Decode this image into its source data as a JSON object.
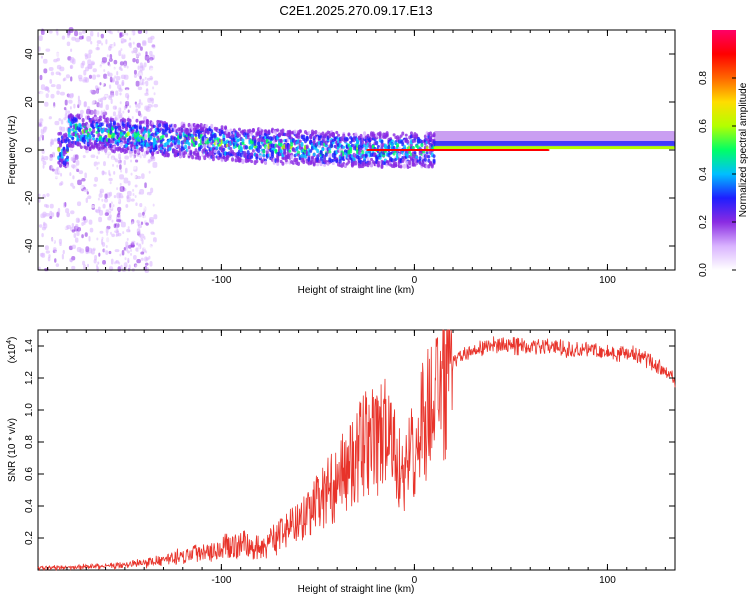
{
  "title": "C2E1.2025.270.09.17.E13",
  "chart_data": [
    {
      "type": "heatmap",
      "title": "C2E1.2025.270.09.17.E13",
      "xlabel": "Height of straight line (km)",
      "ylabel": "Frequency (Hz)",
      "xlim": [
        -195,
        135
      ],
      "ylim": [
        -50,
        50
      ],
      "xticks": [
        -100,
        0,
        100
      ],
      "yticks": [
        -40,
        -20,
        0,
        20,
        40
      ],
      "colorbar": {
        "label": "Normalized spectral amplitude",
        "range": [
          0,
          1
        ],
        "ticks": [
          "0.0",
          "0.2",
          "0.4",
          "0.6",
          "0.8"
        ],
        "colors": [
          "#ffffff",
          "#d9b3ff",
          "#8a2be2",
          "#1e1eff",
          "#00bfff",
          "#00ff66",
          "#b3ff00",
          "#ffdd00",
          "#ff6600",
          "#ff0000",
          "#ff0066"
        ]
      },
      "trend_hz": [
        {
          "x": -180,
          "y": 8
        },
        {
          "x": -150,
          "y": 6
        },
        {
          "x": -120,
          "y": 4
        },
        {
          "x": -90,
          "y": 2
        },
        {
          "x": -60,
          "y": 1
        },
        {
          "x": -30,
          "y": 0
        },
        {
          "x": 0,
          "y": 0
        },
        {
          "x": 130,
          "y": 0
        }
      ]
    },
    {
      "type": "line",
      "xlabel": "Height of straight line (km)",
      "ylabel": "SNR (10 * v/v)",
      "yscale_label": "(x10",
      "yscale_exp": "4",
      "xlim": [
        -195,
        135
      ],
      "ylim": [
        0,
        1.5
      ],
      "xticks": [
        -100,
        0,
        100
      ],
      "yticks": [
        0.2,
        0.4,
        0.6,
        0.8,
        1.0,
        1.2,
        1.4
      ],
      "ytick_labels": [
        "0.2",
        "0.4",
        "0.6",
        "0.8",
        "1.0",
        "1.2",
        "1.4"
      ],
      "color": "#e8332a",
      "series": [
        {
          "name": "SNR",
          "x": [
            -195,
            -170,
            -150,
            -130,
            -110,
            -90,
            -80,
            -70,
            -60,
            -50,
            -40,
            -30,
            -25,
            -20,
            -15,
            -10,
            -5,
            0,
            5,
            10,
            15,
            20,
            30,
            40,
            50,
            60,
            70,
            80,
            90,
            100,
            110,
            120,
            130,
            135
          ],
          "y": [
            0.01,
            0.02,
            0.03,
            0.06,
            0.12,
            0.16,
            0.14,
            0.22,
            0.3,
            0.42,
            0.55,
            0.7,
            0.8,
            0.78,
            0.85,
            0.7,
            0.55,
            0.8,
            0.95,
            1.05,
            1.15,
            1.3,
            1.38,
            1.4,
            1.4,
            1.4,
            1.4,
            1.38,
            1.38,
            1.36,
            1.35,
            1.32,
            1.24,
            1.18
          ]
        }
      ]
    }
  ]
}
